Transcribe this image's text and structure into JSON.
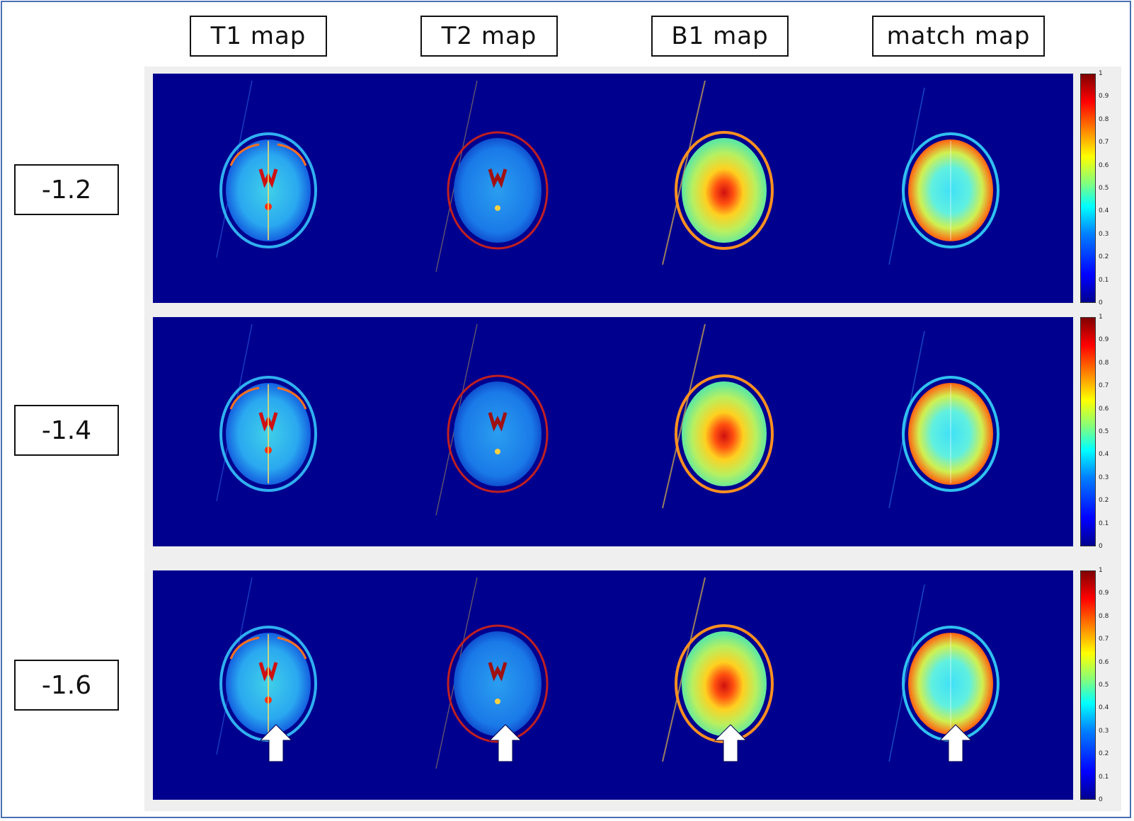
{
  "column_labels": [
    "T1 map",
    "T2 map",
    "B1 map",
    "match map"
  ],
  "row_labels": [
    "-1.2",
    "-1.4",
    "-1.6"
  ],
  "colorbar_ticks": [
    "0",
    "0.1",
    "0.2",
    "0.3",
    "0.4",
    "0.5",
    "0.6",
    "0.7",
    "0.8",
    "0.9",
    "1"
  ],
  "colormap": "jet",
  "arrows_row": "-1.6",
  "colors": {
    "frame_border": "#4a6fb5",
    "map_background": "#00008f",
    "panel_background": "#efefef"
  }
}
